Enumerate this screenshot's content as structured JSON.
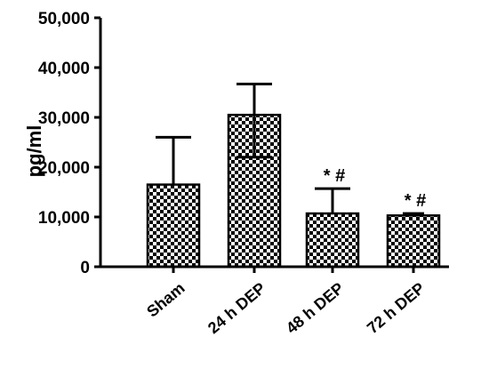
{
  "chart_data": {
    "type": "bar",
    "title": "",
    "xlabel": "",
    "ylabel": "pg/ml",
    "ylim": [
      0,
      50000
    ],
    "yticks": [
      0,
      10000,
      20000,
      30000,
      40000,
      50000
    ],
    "ytick_labels": [
      "0",
      "10,000",
      "20,000",
      "30,000",
      "40,000",
      "50,000"
    ],
    "categories": [
      "Sham",
      "24 h DEP",
      "48 h DEP",
      "72 h DEP"
    ],
    "values": [
      16500,
      30500,
      10700,
      10300
    ],
    "error_upper": [
      9500,
      6200,
      5000,
      400
    ],
    "error_lower_visible": [
      0,
      8500,
      0,
      0
    ],
    "annotations": [
      "",
      "",
      "* #",
      "* #"
    ],
    "grid": false,
    "legend": "none",
    "bar_pattern": "checkerboard",
    "bar_colors": [
      "#000000",
      "#ffffff"
    ]
  }
}
